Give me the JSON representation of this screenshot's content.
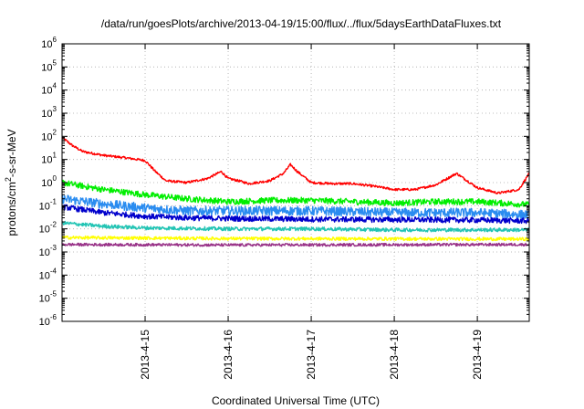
{
  "chart_data": {
    "type": "line",
    "title": "/data/run/goesPlots/archive/2013-04-19/15:00/flux/../flux/5daysEarthDataFluxes.txt",
    "xlabel": "Coordinated Universal Time (UTC)",
    "ylabel": "protons/cm2-s-sr-MeV",
    "ylabel_parts": {
      "pre": "protons/cm",
      "sup": "2",
      "post": "-s-sr-MeV"
    },
    "y_scale": "log",
    "ylim": [
      1e-06,
      1000000.0
    ],
    "xlim": [
      "2013-04-14 00:00",
      "2013-04-19 15:00"
    ],
    "grid": true,
    "x_ticks": [
      {
        "value": "2013-04-15",
        "label": "2013-4-15"
      },
      {
        "value": "2013-04-16",
        "label": "2013-4-16"
      },
      {
        "value": "2013-04-17",
        "label": "2013-4-17"
      },
      {
        "value": "2013-04-18",
        "label": "2013-4-18"
      },
      {
        "value": "2013-04-19",
        "label": "2013-4-19"
      }
    ],
    "y_ticks": [
      {
        "value": 1e-06,
        "base": "10",
        "exp": "-6"
      },
      {
        "value": 1e-05,
        "base": "10",
        "exp": "-5"
      },
      {
        "value": 0.0001,
        "base": "10",
        "exp": "-4"
      },
      {
        "value": 0.001,
        "base": "10",
        "exp": "-3"
      },
      {
        "value": 0.01,
        "base": "10",
        "exp": "-2"
      },
      {
        "value": 0.1,
        "base": "10",
        "exp": "-1"
      },
      {
        "value": 1,
        "base": "10",
        "exp": "0"
      },
      {
        "value": 10.0,
        "base": "10",
        "exp": "1"
      },
      {
        "value": 100.0,
        "base": "10",
        "exp": "2"
      },
      {
        "value": 1000.0,
        "base": "10",
        "exp": "3"
      },
      {
        "value": 10000.0,
        "base": "10",
        "exp": "4"
      },
      {
        "value": 100000.0,
        "base": "10",
        "exp": "5"
      },
      {
        "value": 1000000.0,
        "base": "10",
        "exp": "6"
      }
    ],
    "series": [
      {
        "color": "#ff0000",
        "noise": 0.05,
        "x": [
          "2013-04-14 00:00",
          "2013-04-14 03:00",
          "2013-04-14 06:00",
          "2013-04-14 12:00",
          "2013-04-14 18:00",
          "2013-04-15 00:00",
          "2013-04-15 03:00",
          "2013-04-15 06:00",
          "2013-04-15 12:00",
          "2013-04-15 18:00",
          "2013-04-15 22:00",
          "2013-04-16 00:00",
          "2013-04-16 03:00",
          "2013-04-16 06:00",
          "2013-04-16 12:00",
          "2013-04-16 16:00",
          "2013-04-16 18:00",
          "2013-04-16 20:00",
          "2013-04-17 00:00",
          "2013-04-17 06:00",
          "2013-04-17 12:00",
          "2013-04-17 18:00",
          "2013-04-18 00:00",
          "2013-04-18 06:00",
          "2013-04-18 12:00",
          "2013-04-18 18:00",
          "2013-04-19 00:00",
          "2013-04-19 06:00",
          "2013-04-19 12:00",
          "2013-04-19 15:00"
        ],
        "y": [
          90,
          40,
          22,
          15,
          12,
          9,
          3,
          1.2,
          1.0,
          1.5,
          3.0,
          1.5,
          1.2,
          0.9,
          1.2,
          2.5,
          6,
          3,
          1.0,
          0.9,
          0.9,
          0.7,
          0.5,
          0.5,
          0.8,
          2.5,
          0.6,
          0.35,
          0.5,
          2.5
        ]
      },
      {
        "color": "#00ee00",
        "noise": 0.13,
        "x": [
          "2013-04-14 00:00",
          "2013-04-14 12:00",
          "2013-04-15 00:00",
          "2013-04-15 12:00",
          "2013-04-16 00:00",
          "2013-04-16 12:00",
          "2013-04-17 00:00",
          "2013-04-17 12:00",
          "2013-04-18 00:00",
          "2013-04-18 12:00",
          "2013-04-19 00:00",
          "2013-04-19 15:00"
        ],
        "y": [
          1.0,
          0.5,
          0.3,
          0.2,
          0.15,
          0.17,
          0.17,
          0.15,
          0.13,
          0.15,
          0.15,
          0.11
        ]
      },
      {
        "color": "#2a8cf0",
        "noise": 0.2,
        "x": [
          "2013-04-14 00:00",
          "2013-04-14 12:00",
          "2013-04-15 00:00",
          "2013-04-15 12:00",
          "2013-04-16 00:00",
          "2013-04-17 00:00",
          "2013-04-18 00:00",
          "2013-04-19 00:00",
          "2013-04-19 15:00"
        ],
        "y": [
          0.2,
          0.12,
          0.08,
          0.06,
          0.06,
          0.06,
          0.05,
          0.05,
          0.04
        ]
      },
      {
        "color": "#0000cc",
        "noise": 0.12,
        "x": [
          "2013-04-14 00:00",
          "2013-04-14 12:00",
          "2013-04-15 00:00",
          "2013-04-15 12:00",
          "2013-04-16 00:00",
          "2013-04-17 00:00",
          "2013-04-18 00:00",
          "2013-04-19 00:00",
          "2013-04-19 15:00"
        ],
        "y": [
          0.09,
          0.05,
          0.035,
          0.03,
          0.028,
          0.026,
          0.025,
          0.024,
          0.022
        ]
      },
      {
        "color": "#22c4b4",
        "noise": 0.08,
        "x": [
          "2013-04-14 00:00",
          "2013-04-14 12:00",
          "2013-04-15 00:00",
          "2013-04-16 00:00",
          "2013-04-17 00:00",
          "2013-04-18 00:00",
          "2013-04-19 00:00",
          "2013-04-19 15:00"
        ],
        "y": [
          0.018,
          0.013,
          0.011,
          0.01,
          0.01,
          0.009,
          0.009,
          0.009
        ]
      },
      {
        "color": "#ffff00",
        "noise": 0.07,
        "x": [
          "2013-04-14 00:00",
          "2013-04-16 00:00",
          "2013-04-19 15:00"
        ],
        "y": [
          0.0042,
          0.0038,
          0.0036
        ]
      },
      {
        "color": "#993388",
        "noise": 0.06,
        "x": [
          "2013-04-14 00:00",
          "2013-04-16 00:00",
          "2013-04-19 15:00"
        ],
        "y": [
          0.0021,
          0.002,
          0.0021
        ]
      }
    ]
  }
}
